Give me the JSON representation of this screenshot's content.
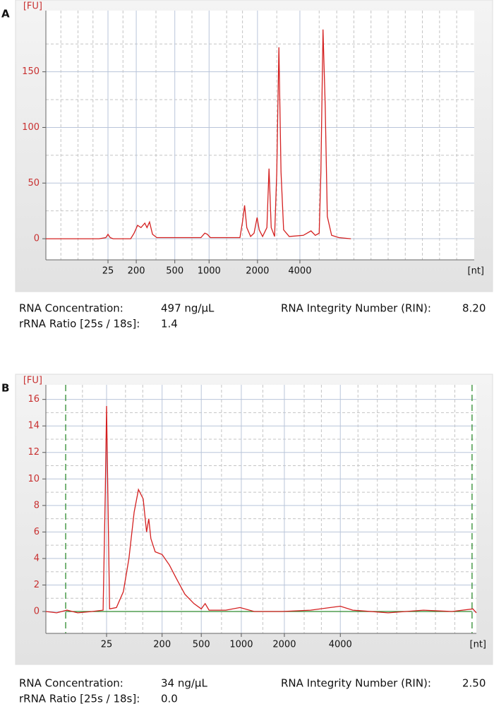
{
  "chart_data": [
    {
      "type": "line",
      "panel_label": "A",
      "y_unit": "[FU]",
      "x_unit": "[nt]",
      "xlim": [
        0,
        100
      ],
      "ylim": [
        -19,
        205
      ],
      "xticks": [
        {
          "value": 14.5,
          "label": "25"
        },
        {
          "value": 21.1,
          "label": "200"
        },
        {
          "value": 30.1,
          "label": "500"
        },
        {
          "value": 38.1,
          "label": "1000"
        },
        {
          "value": 49.4,
          "label": "2000"
        },
        {
          "value": 59.3,
          "label": "4000"
        }
      ],
      "minor_xticks": [
        3.5,
        7.5,
        11,
        18,
        25.7,
        34.1,
        42.2,
        45.9,
        53.9,
        63.8,
        67.9,
        71.9,
        75.9,
        79.9,
        83.9,
        87.9,
        91.9,
        95.9
      ],
      "yticks": [
        0,
        50,
        100,
        150
      ],
      "minor_yticks": [
        25,
        75,
        125,
        175
      ],
      "grid": true,
      "series": [
        {
          "color": "#d42020",
          "x": [
            0,
            12.4,
            14.0,
            14.5,
            15.0,
            15.7,
            19.8,
            20.6,
            21.4,
            22.2,
            23.1,
            23.6,
            24.2,
            24.9,
            25.9,
            32.1,
            36.2,
            37.1,
            37.7,
            38.4,
            45.3,
            45.9,
            46.4,
            46.9,
            47.8,
            48.6,
            49.3,
            49.8,
            50.6,
            51.6,
            52.1,
            52.6,
            53.4,
            53.9,
            54.4,
            54.9,
            55.5,
            56.8,
            60.1,
            61.9,
            62.9,
            63.8,
            64.2,
            64.7,
            65.2,
            65.7,
            66.7,
            68.4,
            71.2
          ],
          "values": [
            0,
            0,
            1,
            4,
            1,
            0,
            0,
            5,
            12,
            10,
            14,
            10,
            15,
            4,
            1,
            1,
            1,
            5,
            4,
            1,
            1,
            15,
            30,
            10,
            2,
            5,
            19,
            8,
            2,
            10,
            63,
            10,
            2,
            60,
            172,
            60,
            8,
            2,
            3,
            7,
            3,
            5,
            60,
            188,
            120,
            20,
            3,
            1,
            0
          ]
        }
      ],
      "metrics": [
        {
          "label": "RNA Concentration:",
          "value": "497 ng/µL"
        },
        {
          "label": "RNA Integrity Number (RIN):",
          "value": "8.20"
        },
        {
          "label": "rRNA Ratio [25s / 18s]:",
          "value": "1.4"
        }
      ]
    },
    {
      "type": "line",
      "panel_label": "B",
      "y_unit": "[FU]",
      "x_unit": "[nt]",
      "xlim": [
        0,
        100
      ],
      "ylim": [
        -1.65,
        17.1
      ],
      "xticks": [
        {
          "value": 14.1,
          "label": "25"
        },
        {
          "value": 27.0,
          "label": "200"
        },
        {
          "value": 36.1,
          "label": "500"
        },
        {
          "value": 45.4,
          "label": "1000"
        },
        {
          "value": 55.4,
          "label": "2000"
        },
        {
          "value": 68.4,
          "label": "4000"
        }
      ],
      "minor_xticks": [
        8.5,
        18.5,
        22.5,
        31.5,
        40.8,
        50.4,
        60,
        64,
        72.5,
        77,
        81.5,
        86,
        90.5,
        95
      ],
      "yticks": [
        0,
        2,
        4,
        6,
        8,
        10,
        12,
        14,
        16
      ],
      "minor_yticks": [
        1,
        3,
        5,
        7,
        9,
        11,
        13,
        15
      ],
      "grid": true,
      "markers": {
        "color": "#2e8b2e",
        "x": [
          4.6,
          99.0
        ],
        "baseline": 0
      },
      "series": [
        {
          "color": "#d42020",
          "x": [
            0,
            2.5,
            4.9,
            7.4,
            10.7,
            13.3,
            13.8,
            14.1,
            14.4,
            14.8,
            16.4,
            18.0,
            19.3,
            20.5,
            21.5,
            22.6,
            23.4,
            23.9,
            24.4,
            25.4,
            27.0,
            28.7,
            30.3,
            32.3,
            34.4,
            36.1,
            37.0,
            37.9,
            41.8,
            45.1,
            48.4,
            54.9,
            61.5,
            68.4,
            71.3,
            79.5,
            87.7,
            94.3,
            99.2,
            100
          ],
          "values": [
            0,
            -0.1,
            0.1,
            -0.1,
            0,
            0.1,
            9,
            15.5,
            9,
            0.2,
            0.3,
            1.5,
            4,
            7.5,
            9.2,
            8.5,
            6,
            7,
            5.5,
            4.5,
            4.3,
            3.5,
            2.5,
            1.3,
            0.6,
            0.2,
            0.6,
            0.1,
            0.1,
            0.3,
            0,
            0,
            0.1,
            0.4,
            0.1,
            -0.1,
            0.1,
            0,
            0.2,
            -0.1
          ]
        }
      ],
      "metrics": [
        {
          "label": "RNA Concentration:",
          "value": "34 ng/µL"
        },
        {
          "label": "RNA Integrity Number (RIN):",
          "value": "2.50"
        },
        {
          "label": "rRNA Ratio [25s / 18s]:",
          "value": "0.0"
        }
      ]
    }
  ]
}
